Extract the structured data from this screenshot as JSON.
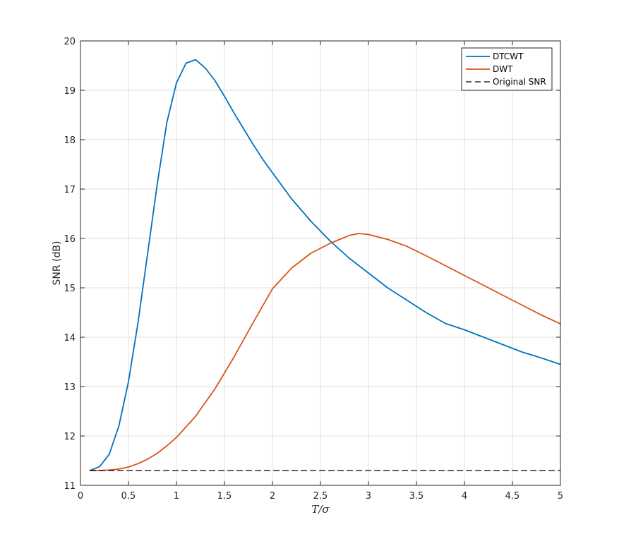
{
  "chart_data": {
    "type": "line",
    "title": "",
    "xlabel": "T/σ",
    "ylabel": "SNR (dB)",
    "xlim": [
      0,
      5
    ],
    "ylim": [
      11,
      20
    ],
    "xticks": [
      0,
      0.5,
      1,
      1.5,
      2,
      2.5,
      3,
      3.5,
      4,
      4.5,
      5
    ],
    "xtick_labels": [
      "0",
      "0.5",
      "1",
      "1.5",
      "2",
      "2.5",
      "3",
      "3.5",
      "4",
      "4.5",
      "5"
    ],
    "yticks": [
      11,
      12,
      13,
      14,
      15,
      16,
      17,
      18,
      19,
      20
    ],
    "ytick_labels": [
      "11",
      "12",
      "13",
      "14",
      "15",
      "16",
      "17",
      "18",
      "19",
      "20"
    ],
    "grid": true,
    "legend_position": "top-right",
    "series": [
      {
        "name": "DTCWT",
        "color": "#0072bd",
        "style": "solid",
        "x": [
          0.1,
          0.2,
          0.3,
          0.4,
          0.5,
          0.6,
          0.7,
          0.8,
          0.9,
          1.0,
          1.1,
          1.2,
          1.3,
          1.4,
          1.5,
          1.6,
          1.7,
          1.8,
          1.9,
          2.0,
          2.2,
          2.4,
          2.6,
          2.8,
          3.0,
          3.2,
          3.4,
          3.6,
          3.8,
          4.0,
          4.2,
          4.4,
          4.6,
          4.8,
          5.0
        ],
        "y": [
          11.3,
          11.38,
          11.63,
          12.2,
          13.1,
          14.3,
          15.7,
          17.1,
          18.35,
          19.15,
          19.55,
          19.62,
          19.45,
          19.2,
          18.88,
          18.54,
          18.22,
          17.9,
          17.6,
          17.33,
          16.8,
          16.35,
          15.95,
          15.6,
          15.3,
          15.0,
          14.75,
          14.5,
          14.28,
          14.15,
          14.0,
          13.85,
          13.7,
          13.58,
          13.45
        ]
      },
      {
        "name": "DWT",
        "color": "#d95319",
        "style": "solid",
        "x": [
          0.1,
          0.2,
          0.3,
          0.4,
          0.5,
          0.6,
          0.7,
          0.8,
          0.9,
          1.0,
          1.2,
          1.4,
          1.6,
          1.8,
          2.0,
          2.2,
          2.4,
          2.6,
          2.8,
          2.9,
          3.0,
          3.2,
          3.4,
          3.6,
          3.8,
          4.0,
          4.2,
          4.4,
          4.6,
          4.8,
          5.0
        ],
        "y": [
          11.3,
          11.3,
          11.31,
          11.33,
          11.37,
          11.44,
          11.53,
          11.65,
          11.8,
          11.97,
          12.4,
          12.95,
          13.6,
          14.3,
          14.98,
          15.4,
          15.7,
          15.9,
          16.06,
          16.1,
          16.08,
          15.98,
          15.84,
          15.65,
          15.45,
          15.25,
          15.05,
          14.85,
          14.65,
          14.45,
          14.27
        ]
      },
      {
        "name": "Original SNR",
        "color": "#000000",
        "style": "dashed",
        "x": [
          0.1,
          5.0
        ],
        "y": [
          11.3,
          11.3
        ]
      }
    ]
  }
}
